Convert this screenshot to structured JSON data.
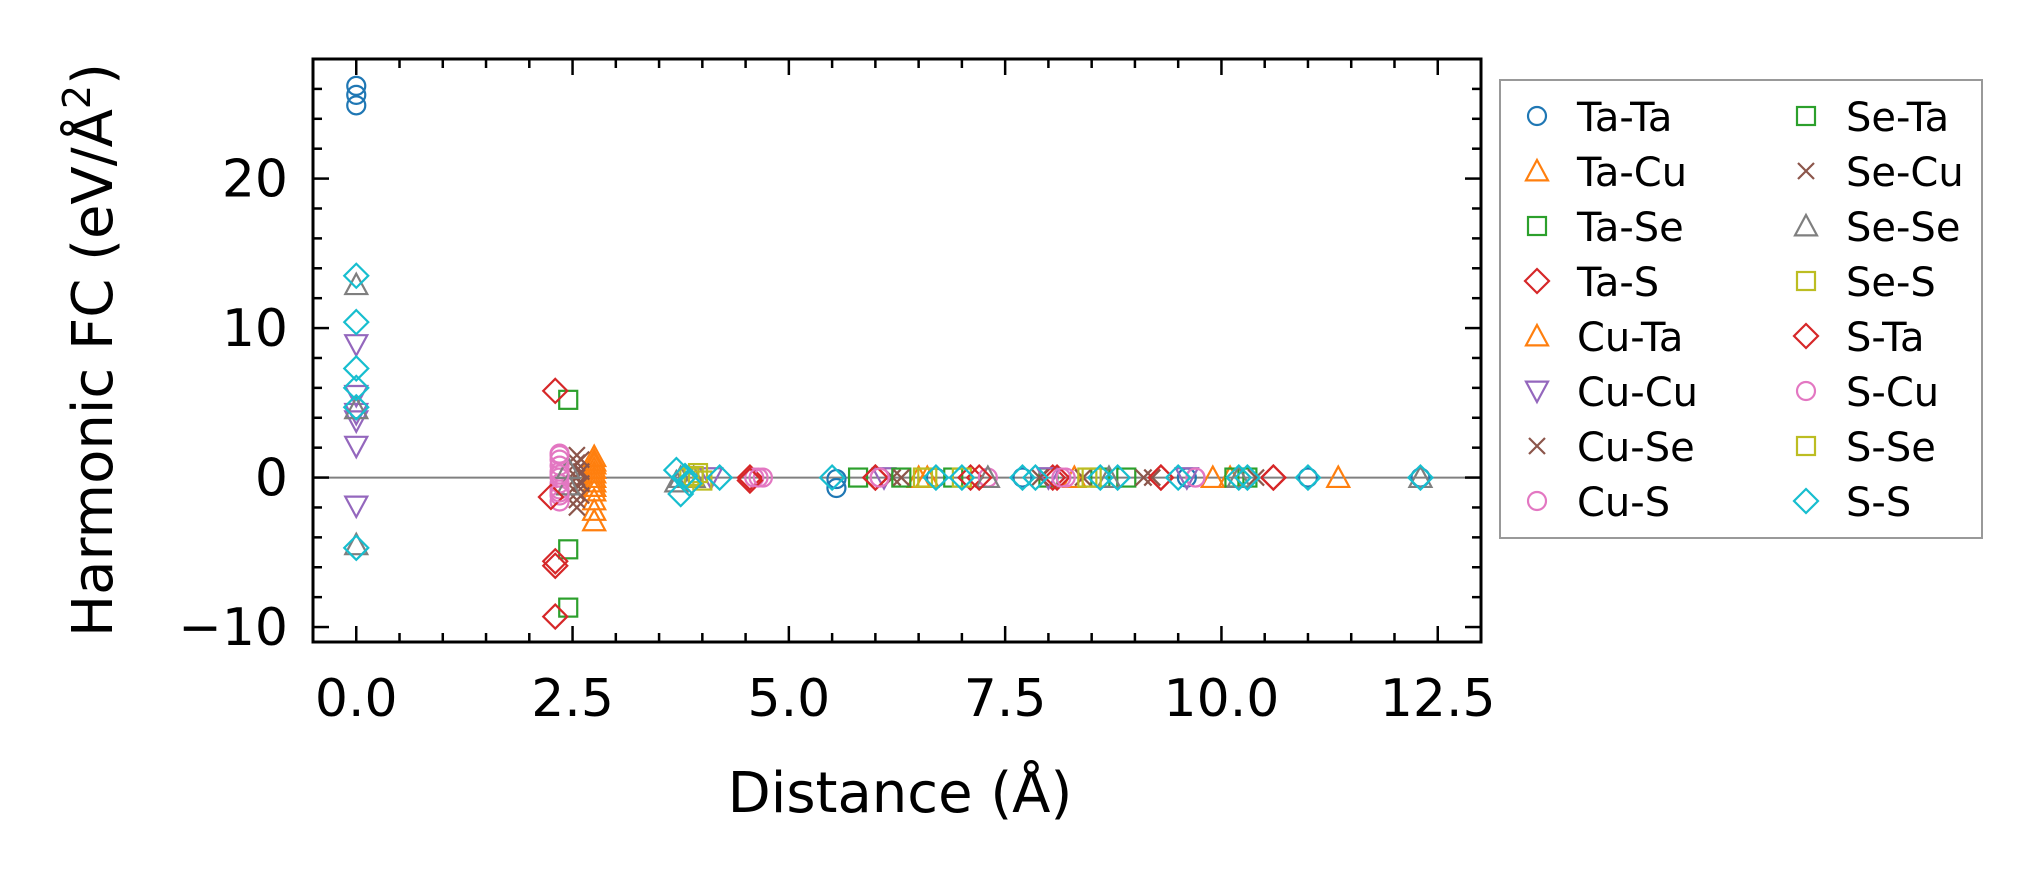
{
  "chart_data": {
    "type": "scatter",
    "title": "",
    "xlabel": "Distance (Å)",
    "ylabel": "Harmonic FC (eV/Å²)",
    "ylabel_parts": {
      "main": "Harmonic FC (eV/Å",
      "sup": "2",
      "close": ")"
    },
    "xlim": [
      -0.5,
      13.0
    ],
    "ylim": [
      -11.0,
      28.0
    ],
    "x_ticks": [
      0.0,
      2.5,
      5.0,
      7.5,
      10.0,
      12.5
    ],
    "x_tick_labels": [
      "0.0",
      "2.5",
      "5.0",
      "7.5",
      "10.0",
      "12.5"
    ],
    "y_ticks": [
      -10,
      0,
      10,
      20
    ],
    "y_tick_labels": [
      "−10",
      "0",
      "10",
      "20"
    ],
    "zero_line": true,
    "grid": false,
    "legend_position": "outside-right",
    "series": [
      {
        "name": "Ta-Ta",
        "marker": "circle",
        "color": "#1f77b4",
        "points": [
          [
            0,
            26.2
          ],
          [
            0,
            25.6
          ],
          [
            0,
            24.9
          ],
          [
            5.55,
            -0.7
          ],
          [
            5.55,
            -0.1
          ],
          [
            6.7,
            0
          ],
          [
            7.7,
            0
          ],
          [
            9.6,
            0
          ],
          [
            11.0,
            0
          ],
          [
            12.3,
            0
          ]
        ]
      },
      {
        "name": "Ta-Cu",
        "marker": "triangle-up",
        "color": "#ff7f0e",
        "points": [
          [
            2.75,
            1.4
          ],
          [
            2.75,
            0.9
          ],
          [
            2.75,
            0.3
          ],
          [
            2.75,
            -0.3
          ],
          [
            2.75,
            -0.9
          ],
          [
            2.75,
            -1.5
          ],
          [
            2.75,
            -2.2
          ],
          [
            2.75,
            -2.9
          ],
          [
            6.6,
            0
          ],
          [
            8.3,
            0
          ],
          [
            10.1,
            0
          ],
          [
            11.35,
            0
          ]
        ]
      },
      {
        "name": "Ta-Se",
        "marker": "square",
        "color": "#2ca02c",
        "points": [
          [
            2.45,
            5.2
          ],
          [
            2.45,
            -4.8
          ],
          [
            2.45,
            -8.7
          ],
          [
            5.8,
            0
          ],
          [
            6.9,
            0
          ],
          [
            8.0,
            0
          ],
          [
            8.9,
            0
          ],
          [
            10.3,
            0
          ]
        ]
      },
      {
        "name": "Ta-S",
        "marker": "diamond",
        "color": "#d62728",
        "points": [
          [
            2.3,
            5.8
          ],
          [
            2.3,
            -5.6
          ],
          [
            2.3,
            -9.3
          ],
          [
            4.55,
            0
          ],
          [
            6.0,
            0
          ],
          [
            7.1,
            0
          ],
          [
            8.05,
            0
          ],
          [
            9.3,
            0
          ],
          [
            10.6,
            0
          ]
        ]
      },
      {
        "name": "Cu-Ta",
        "marker": "triangle-up",
        "color": "#ff7f0e",
        "points": [
          [
            2.75,
            1.1
          ],
          [
            2.75,
            0.6
          ],
          [
            2.75,
            0
          ],
          [
            2.75,
            -0.6
          ],
          [
            6.5,
            0
          ],
          [
            9.9,
            0
          ]
        ]
      },
      {
        "name": "Cu-Cu",
        "marker": "triangle-down",
        "color": "#9467bd",
        "points": [
          [
            0,
            8.9
          ],
          [
            0,
            5.5
          ],
          [
            0,
            4.3
          ],
          [
            0,
            3.8
          ],
          [
            0,
            2.1
          ],
          [
            0,
            -1.9
          ],
          [
            4.1,
            0
          ],
          [
            6.1,
            0
          ],
          [
            8.0,
            0
          ],
          [
            9.6,
            0
          ]
        ]
      },
      {
        "name": "Cu-Se",
        "marker": "x",
        "color": "#8c564b",
        "points": [
          [
            2.55,
            1.5
          ],
          [
            2.55,
            1.0
          ],
          [
            2.55,
            0.5
          ],
          [
            2.55,
            0
          ],
          [
            2.55,
            -0.5
          ],
          [
            2.55,
            -1.0
          ],
          [
            2.55,
            -1.5
          ],
          [
            2.55,
            -2.0
          ],
          [
            6.2,
            0
          ],
          [
            7.9,
            0
          ],
          [
            9.1,
            0
          ],
          [
            10.4,
            0
          ]
        ]
      },
      {
        "name": "Cu-S",
        "marker": "circle",
        "color": "#e377c2",
        "points": [
          [
            2.35,
            1.6
          ],
          [
            2.35,
            1.2
          ],
          [
            2.35,
            0.8
          ],
          [
            2.35,
            0.4
          ],
          [
            2.35,
            0
          ],
          [
            2.35,
            -0.4
          ],
          [
            2.35,
            -0.8
          ],
          [
            2.35,
            -1.2
          ],
          [
            2.35,
            -1.6
          ],
          [
            4.6,
            0
          ],
          [
            4.7,
            0
          ],
          [
            6.05,
            0
          ],
          [
            7.3,
            0
          ],
          [
            8.2,
            0
          ],
          [
            9.7,
            0
          ]
        ]
      },
      {
        "name": "Se-Ta",
        "marker": "square",
        "color": "#2ca02c",
        "points": [
          [
            6.3,
            0
          ],
          [
            8.6,
            0
          ],
          [
            10.15,
            0
          ]
        ]
      },
      {
        "name": "Se-Cu",
        "marker": "x",
        "color": "#8c564b",
        "points": [
          [
            2.6,
            1.2
          ],
          [
            2.6,
            0.4
          ],
          [
            2.6,
            -0.4
          ],
          [
            2.6,
            -1.2
          ],
          [
            6.3,
            0
          ],
          [
            8.4,
            0
          ],
          [
            9.2,
            0
          ]
        ]
      },
      {
        "name": "Se-Se",
        "marker": "triangle-up",
        "color": "#7f7f7f",
        "points": [
          [
            0,
            12.9
          ],
          [
            0,
            4.6
          ],
          [
            0,
            -4.5
          ],
          [
            2.45,
            0.6
          ],
          [
            2.45,
            -0.5
          ],
          [
            3.7,
            -0.3
          ],
          [
            3.75,
            0
          ],
          [
            3.9,
            0
          ],
          [
            7.3,
            0
          ],
          [
            8.7,
            0
          ],
          [
            10.2,
            0
          ],
          [
            12.3,
            0
          ]
        ]
      },
      {
        "name": "Se-S",
        "marker": "square",
        "color": "#bcbd22",
        "points": [
          [
            3.95,
            0.3
          ],
          [
            4.0,
            -0.2
          ],
          [
            3.85,
            0
          ],
          [
            6.6,
            0
          ],
          [
            7.0,
            0
          ],
          [
            8.5,
            0
          ]
        ]
      },
      {
        "name": "S-Ta",
        "marker": "diamond",
        "color": "#d62728",
        "points": [
          [
            2.25,
            -1.3
          ],
          [
            2.3,
            -5.9
          ],
          [
            4.55,
            -0.2
          ],
          [
            6.0,
            0
          ],
          [
            7.2,
            0
          ],
          [
            8.1,
            0
          ],
          [
            9.3,
            0
          ],
          [
            10.6,
            0
          ]
        ]
      },
      {
        "name": "S-Cu",
        "marker": "circle",
        "color": "#e377c2",
        "points": [
          [
            2.35,
            1.5
          ],
          [
            2.35,
            0.2
          ],
          [
            2.35,
            -1.0
          ],
          [
            4.65,
            0
          ],
          [
            6.05,
            0
          ],
          [
            8.15,
            0
          ],
          [
            9.7,
            0
          ]
        ]
      },
      {
        "name": "S-Se",
        "marker": "square",
        "color": "#bcbd22",
        "points": [
          [
            3.9,
            0.1
          ],
          [
            6.55,
            0
          ],
          [
            8.45,
            0
          ]
        ]
      },
      {
        "name": "S-S",
        "marker": "diamond",
        "color": "#17becf",
        "points": [
          [
            0,
            13.5
          ],
          [
            0,
            10.4
          ],
          [
            0,
            7.3
          ],
          [
            0,
            6.0
          ],
          [
            0,
            4.7
          ],
          [
            0,
            -4.7
          ],
          [
            3.7,
            0.5
          ],
          [
            3.75,
            -1.1
          ],
          [
            3.8,
            0.1
          ],
          [
            3.85,
            -0.4
          ],
          [
            4.2,
            0
          ],
          [
            5.5,
            0
          ],
          [
            6.7,
            0
          ],
          [
            7.0,
            0
          ],
          [
            7.7,
            0
          ],
          [
            7.85,
            0
          ],
          [
            8.6,
            0
          ],
          [
            8.8,
            0
          ],
          [
            9.5,
            0
          ],
          [
            10.2,
            0
          ],
          [
            10.3,
            0
          ],
          [
            11.0,
            0
          ],
          [
            12.3,
            0
          ]
        ]
      }
    ]
  }
}
